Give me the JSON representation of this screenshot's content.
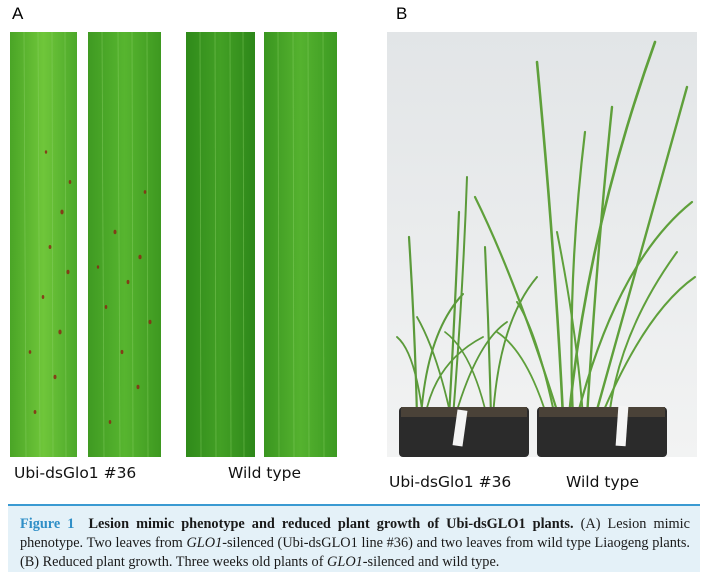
{
  "panel_a": {
    "label": "A",
    "caption_left": "Ubi-dsGlo1 #36",
    "caption_right": "Wild type",
    "leaf_color_light": "#6fc63a",
    "leaf_color_dark": "#3f9d22",
    "lesion_color": "#8a2a14"
  },
  "panel_b": {
    "label": "B",
    "caption_left": "Ubi-dsGlo1 #36",
    "caption_right": "Wild type",
    "background_color": "#eceeef",
    "plant_color": "#5b9a3a",
    "pot_color": "#2b2b2b"
  },
  "figure_caption": {
    "fig_label": "Figure 1",
    "title": "Lesion mimic phenotype and reduced plant growth of Ubi-dsGLO1 plants.",
    "part_a_1": "(A) Lesion mimic phenotype. Two leaves from ",
    "gene_1": "GLO1",
    "part_a_2": "-silenced (Ubi-dsGLO1 line #36) and two leaves from wild type Liaogeng plants. (B) Reduced plant growth. Three weeks old plants of ",
    "gene_2": "GLO1",
    "part_b_end": "-silenced and wild type.",
    "accent_color": "#2f8fc7",
    "background_color": "#e4f1f8"
  }
}
